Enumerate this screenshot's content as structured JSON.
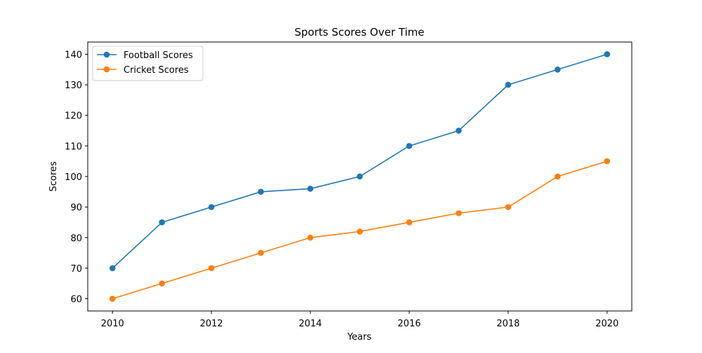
{
  "chart_data": {
    "type": "line",
    "title": "Sports Scores Over Time",
    "xlabel": "Years",
    "ylabel": "Scores",
    "x": [
      2010,
      2011,
      2012,
      2013,
      2014,
      2015,
      2016,
      2017,
      2018,
      2019,
      2020
    ],
    "xticks": [
      2010,
      2012,
      2014,
      2016,
      2018,
      2020
    ],
    "yticks": [
      60,
      70,
      80,
      90,
      100,
      110,
      120,
      130,
      140
    ],
    "xlim": [
      2009.5,
      2020.5
    ],
    "ylim": [
      56,
      144
    ],
    "grid": false,
    "legend_position": "top-left",
    "series": [
      {
        "name": "Football Scores",
        "color": "#1f77b4",
        "marker": "circle",
        "values": [
          70,
          85,
          90,
          95,
          96,
          100,
          110,
          115,
          130,
          135,
          140
        ]
      },
      {
        "name": "Cricket Scores",
        "color": "#ff7f0e",
        "marker": "circle",
        "values": [
          60,
          65,
          70,
          75,
          80,
          82,
          85,
          88,
          90,
          100,
          105
        ]
      }
    ]
  }
}
